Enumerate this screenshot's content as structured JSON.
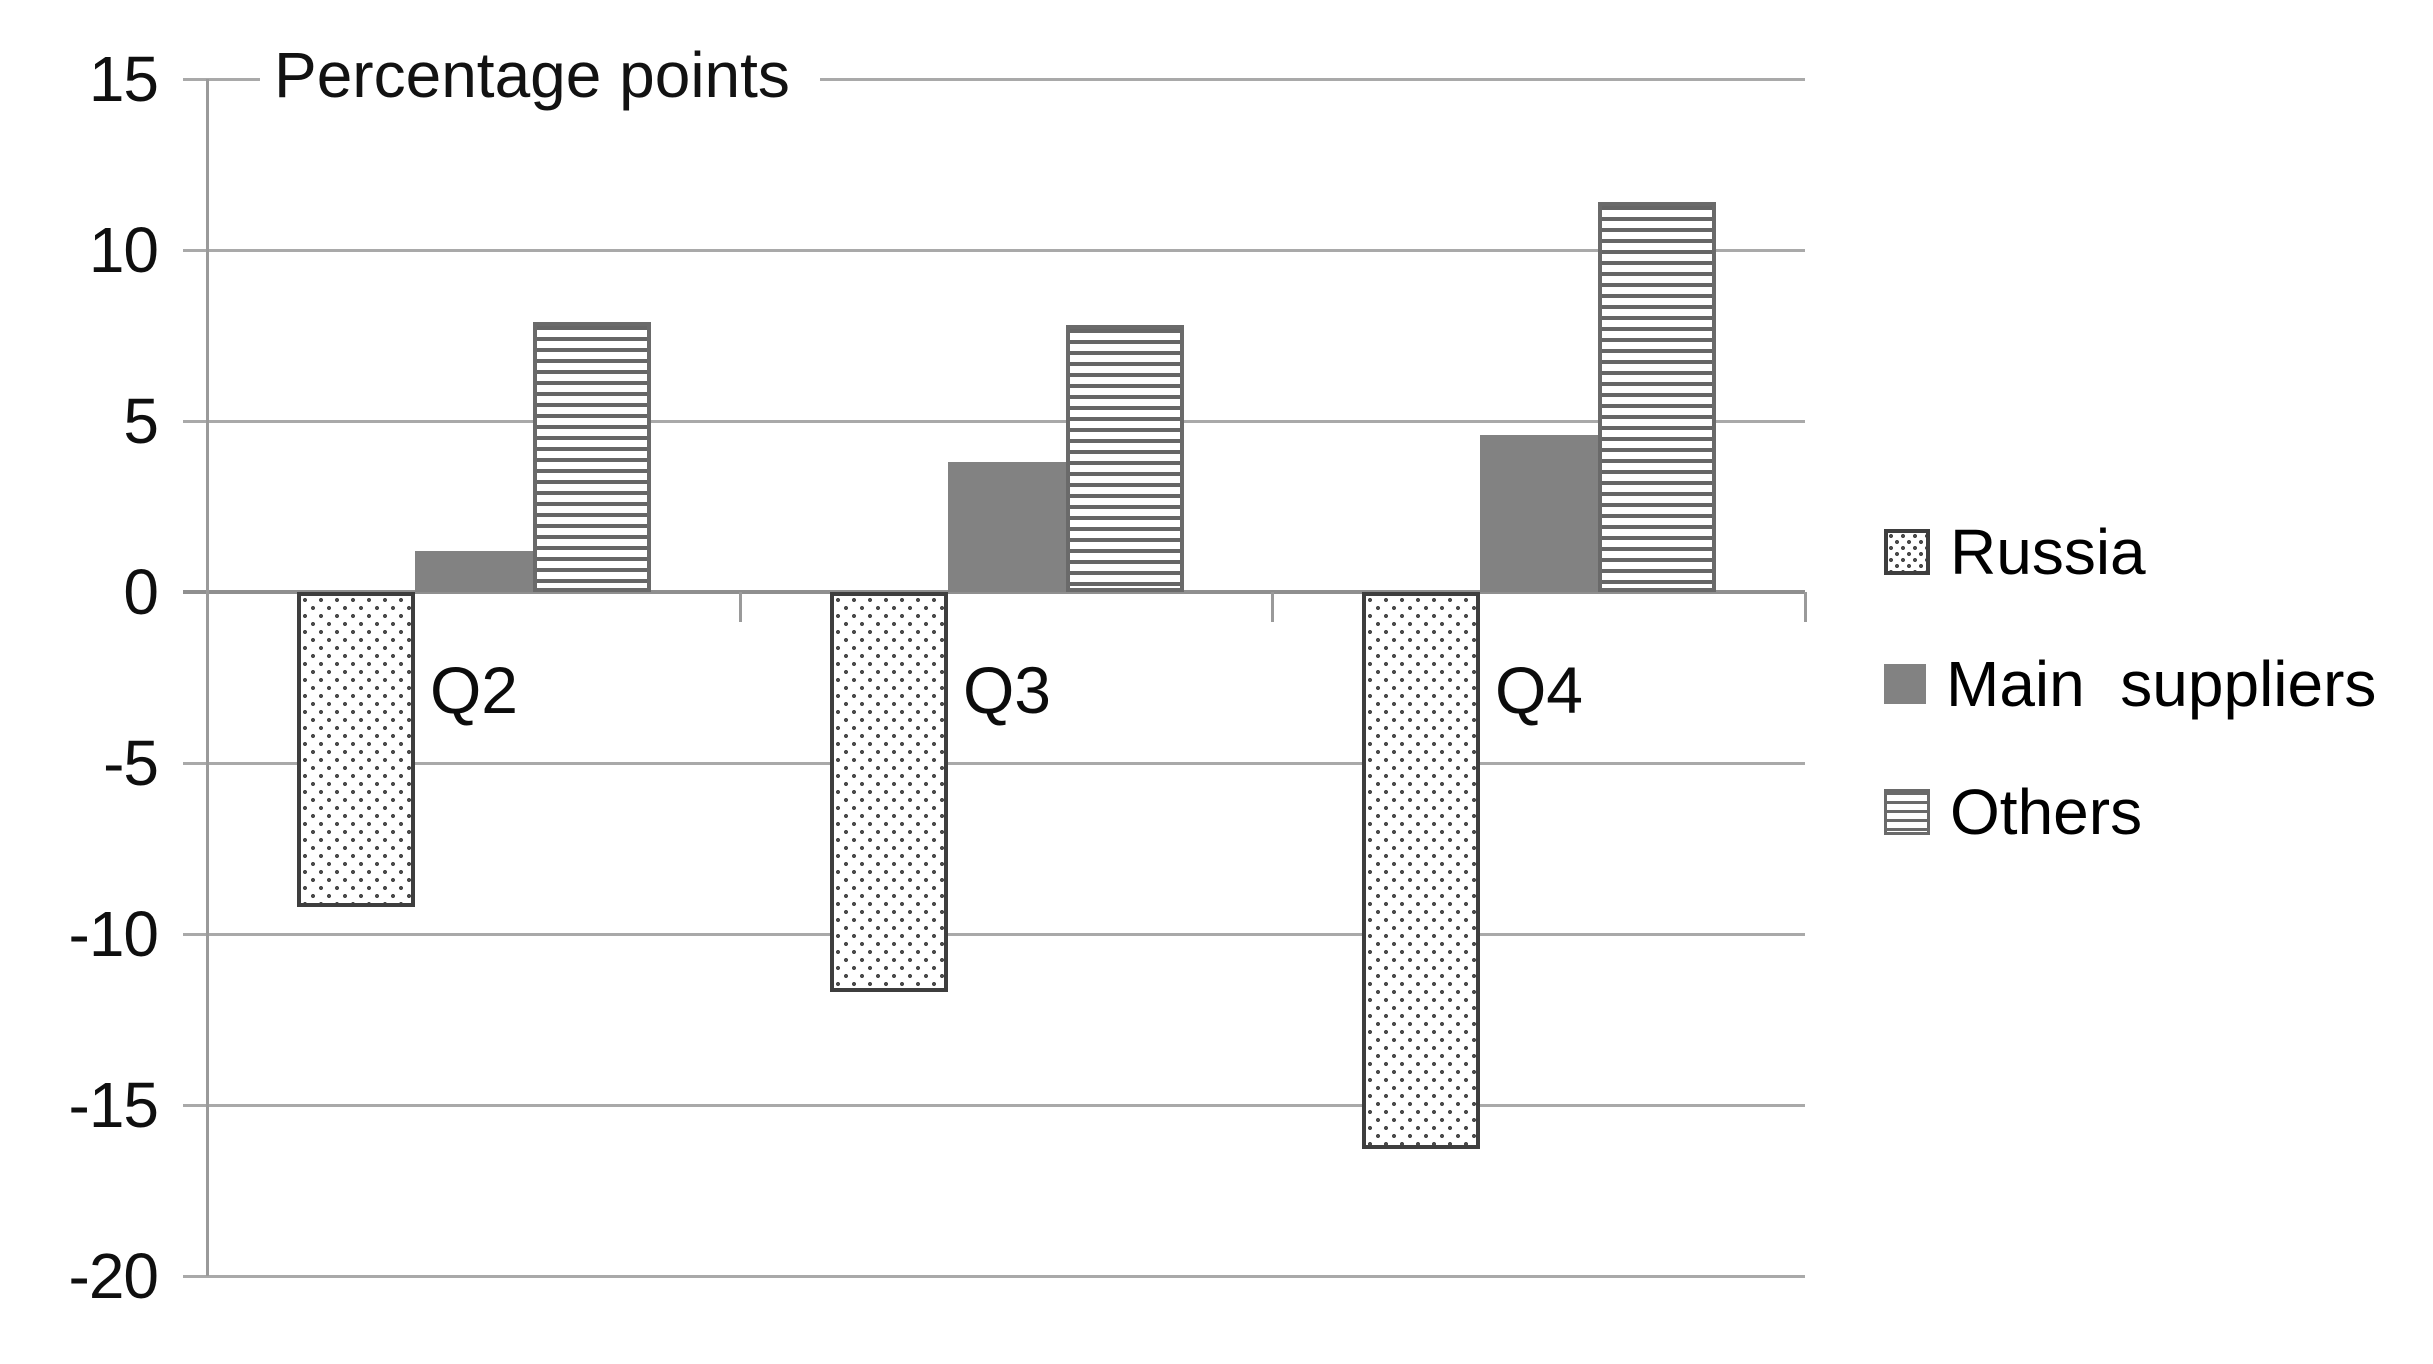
{
  "chart_data": {
    "type": "bar",
    "title": "Percentage points",
    "categories": [
      "Q2",
      "Q3",
      "Q4"
    ],
    "series": [
      {
        "name": "Russia",
        "pattern": "dots",
        "values": [
          -9.2,
          -11.7,
          -16.3
        ]
      },
      {
        "name": "Main  suppliers",
        "pattern": "solid",
        "values": [
          1.2,
          3.8,
          4.6
        ]
      },
      {
        "name": "Others",
        "pattern": "hlines",
        "values": [
          7.9,
          7.8,
          11.4
        ]
      }
    ],
    "ylim": [
      -20,
      15
    ],
    "yticks": [
      15,
      10,
      5,
      0,
      -5,
      -10,
      -15,
      -20
    ],
    "xlabel": "",
    "ylabel": "",
    "grid": true,
    "legend_position": "right"
  },
  "colors": {
    "gridline": "#a9a9a9",
    "zero_line": "#8f8f8f",
    "axis": "#9a9a9a",
    "solid_bar_gray": "#828282",
    "pattern_gray": "#666666",
    "dark_border": "#3e3e3e",
    "text": "#0f0f0f",
    "background": "#ffffff"
  }
}
